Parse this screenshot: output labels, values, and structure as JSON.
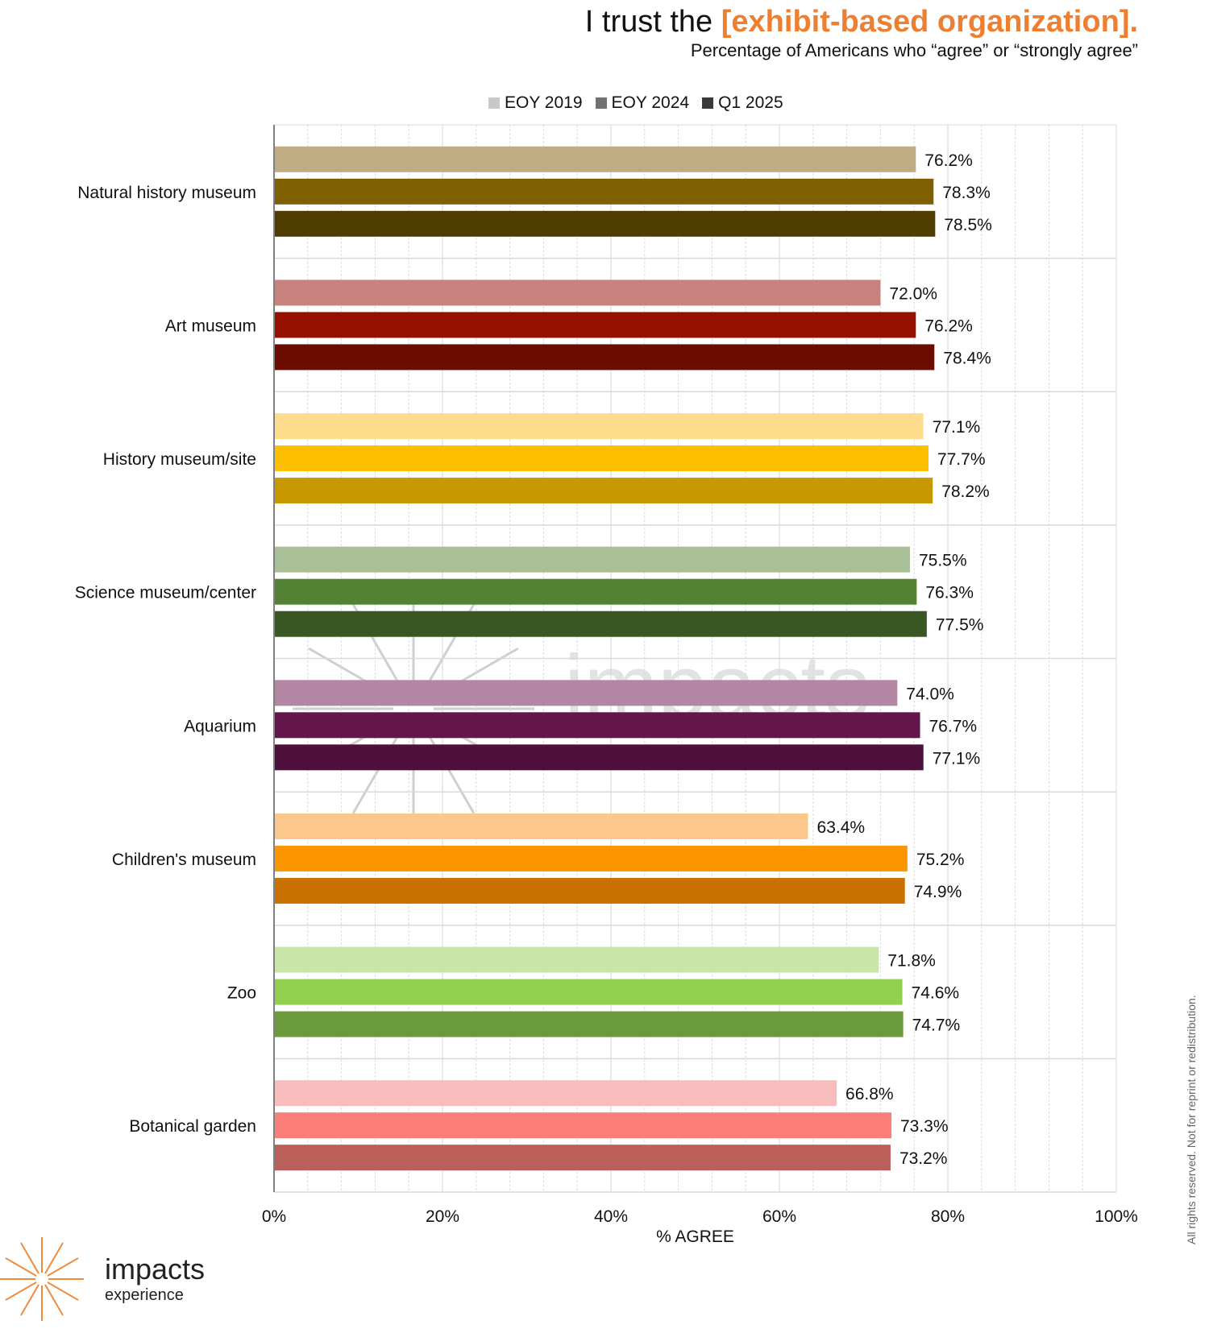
{
  "header": {
    "title_prefix": "I trust the ",
    "title_highlight": "[exhibit-based organization].",
    "subtitle": "Percentage of Americans who “agree” or “strongly agree”"
  },
  "legend": [
    {
      "label": "EOY 2019",
      "color": "#c8c8c8"
    },
    {
      "label": "EOY 2024",
      "color": "#737070"
    },
    {
      "label": "Q1 2025",
      "color": "#3a3838"
    }
  ],
  "watermark": {
    "text": "impacts"
  },
  "logo": {
    "word": "impacts",
    "sub": "experience",
    "color": "#f08a3c"
  },
  "rights_notice": "All rights reserved. Not for reprint or redistribution.",
  "chart_data": {
    "type": "bar",
    "orientation": "horizontal",
    "title": "I trust the [exhibit-based organization].",
    "subtitle": "Percentage of Americans who “agree” or “strongly agree”",
    "xlabel": "% AGREE",
    "ylabel": "",
    "xlim": [
      0,
      100
    ],
    "x_ticks": [
      "0%",
      "20%",
      "40%",
      "60%",
      "80%",
      "100%"
    ],
    "x_tick_values": [
      0,
      20,
      40,
      60,
      80,
      100
    ],
    "grid": true,
    "legend_position": "top-center",
    "series_names": [
      "EOY 2019",
      "EOY 2024",
      "Q1 2025"
    ],
    "categories": [
      "Natural history museum",
      "Art museum",
      "History museum/site",
      "Science museum/center",
      "Aquarium",
      "Children's museum",
      "Zoo",
      "Botanical garden"
    ],
    "series": [
      {
        "name": "EOY 2019",
        "values": [
          76.2,
          72.0,
          77.1,
          75.5,
          74.0,
          63.4,
          71.8,
          66.8
        ]
      },
      {
        "name": "EOY 2024",
        "values": [
          78.3,
          76.2,
          77.7,
          76.3,
          76.7,
          75.2,
          74.6,
          73.3
        ]
      },
      {
        "name": "Q1 2025",
        "values": [
          78.5,
          78.4,
          78.2,
          77.5,
          77.1,
          74.9,
          74.7,
          73.2
        ]
      }
    ],
    "bar_colors": [
      [
        "#bfac82",
        "#7f6000",
        "#4f3c00"
      ],
      [
        "#c8827e",
        "#961000",
        "#6b0c00"
      ],
      [
        "#fddd8c",
        "#fdc000",
        "#c79800"
      ],
      [
        "#a9bf97",
        "#548235",
        "#385723"
      ],
      [
        "#b386a3",
        "#63154c",
        "#4e0f3a"
      ],
      [
        "#fcc78b",
        "#fb9500",
        "#c87100"
      ],
      [
        "#c7e6a8",
        "#92d050",
        "#6a9a3c"
      ],
      [
        "#f9bcbc",
        "#fb7e79",
        "#bb5f5b"
      ]
    ],
    "value_label_suffix": "%"
  }
}
